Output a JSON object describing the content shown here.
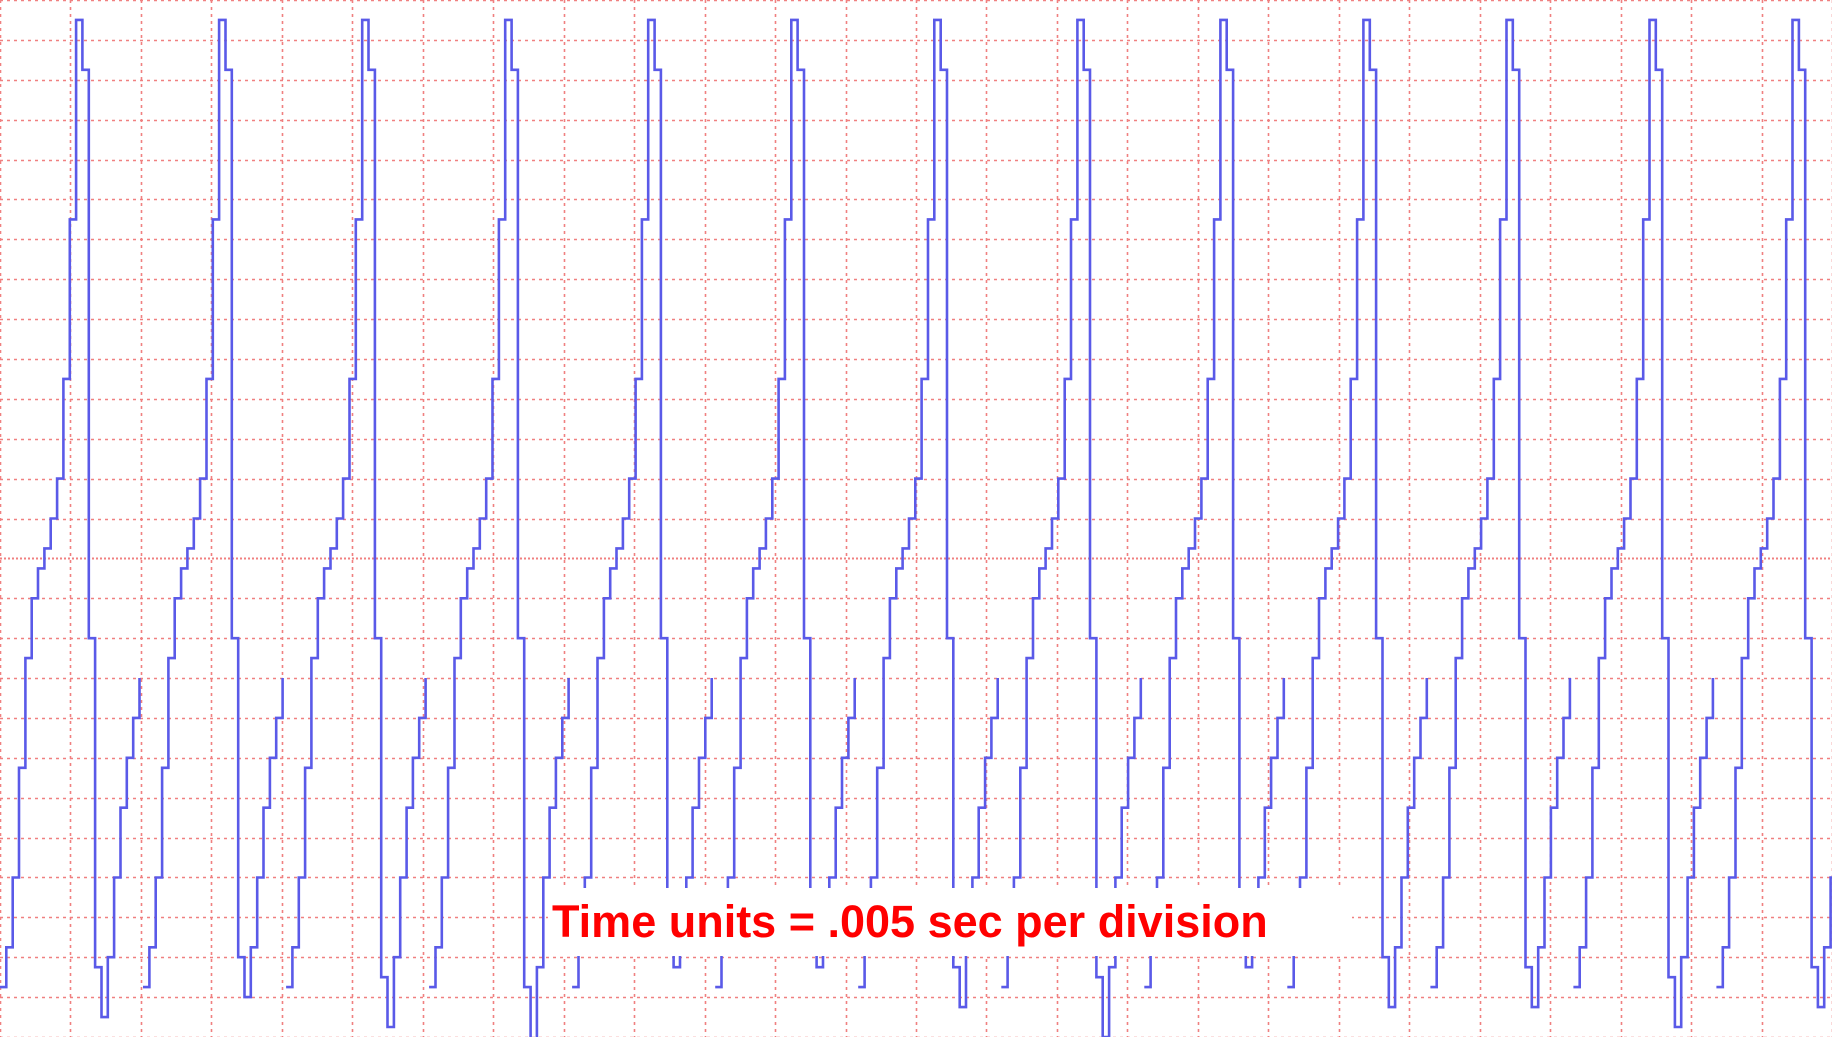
{
  "chart_data": {
    "type": "line",
    "title": "",
    "xlabel": "",
    "ylabel": "",
    "grid": true,
    "grid_style": "dotted",
    "divisions": {
      "x": 26,
      "y": 26
    },
    "center_line_division": 14,
    "colors": {
      "grid": "#f08080",
      "trace": "#5a5ae8",
      "annotation": "#ff0000"
    },
    "series": [
      {
        "waveform": "repeating cycle: slow curved rise, sharp narrow peak, steep drop to a deep trough, then recovery",
        "cycle_period_divisions": 2.03,
        "first_cycle_start_division": 0.0,
        "cycle_count": 13,
        "peak_level_div": 25.7,
        "trough_level_div": 0.6,
        "step_resolution_divisions": 0.09,
        "cycle_shape": [
          [
            0.0,
            1.3
          ],
          [
            0.12,
            2.4
          ],
          [
            0.25,
            6.0
          ],
          [
            0.34,
            9.0
          ],
          [
            0.42,
            10.6
          ],
          [
            0.5,
            11.4
          ],
          [
            0.58,
            11.9
          ],
          [
            0.66,
            12.4
          ],
          [
            0.72,
            12.9
          ],
          [
            0.78,
            13.5
          ],
          [
            0.84,
            14.4
          ],
          [
            0.88,
            15.6
          ],
          [
            0.93,
            17.6
          ],
          [
            0.97,
            19.6
          ],
          [
            1.01,
            21.6
          ],
          [
            1.05,
            24.1
          ],
          [
            1.08,
            25.6
          ],
          [
            1.13,
            25.7
          ],
          [
            1.17,
            24.2
          ],
          [
            1.2,
            20.6
          ],
          [
            1.24,
            13.2
          ],
          [
            1.29,
            5.0
          ],
          [
            1.34,
            2.2
          ],
          [
            1.38,
            1.0
          ],
          [
            1.42,
            0.6
          ],
          [
            1.47,
            1.0
          ],
          [
            1.52,
            2.0
          ],
          [
            1.6,
            3.6
          ],
          [
            1.7,
            5.5
          ],
          [
            1.82,
            7.2
          ],
          [
            1.93,
            8.6
          ],
          [
            2.03,
            9.6
          ]
        ],
        "cycle_trough_levels": [
          0.4,
          0.75,
          0.05,
          -0.4,
          1.6,
          1.6,
          0.45,
          -0.2,
          1.6,
          0.6,
          0.45,
          -0.1,
          0.55
        ]
      }
    ]
  },
  "annotation": {
    "text": "Time units = .005 sec per division",
    "color": "#ff0000"
  }
}
